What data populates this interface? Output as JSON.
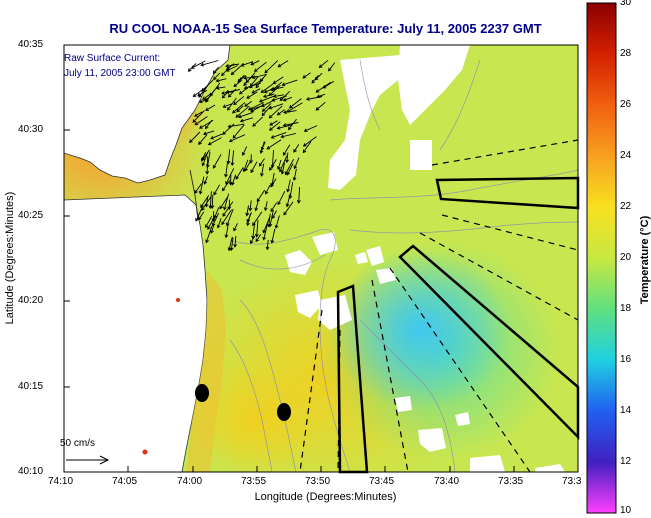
{
  "title": "RU COOL  NOAA-15  Sea Surface Temperature:  July 11, 2005 2237 GMT",
  "map": {
    "xlabel": "Longitude (Degrees:Minutes)",
    "ylabel": "Latitude (Degrees:Minutes)",
    "x_ticks": [
      "74:10",
      "74:05",
      "74:00",
      "73:55",
      "73:50",
      "73:45",
      "73:40",
      "73:35",
      "73:3"
    ],
    "y_ticks": [
      "40:35",
      "40:30",
      "40:25",
      "40:20",
      "40:15",
      "40:10"
    ],
    "annotation_line1": "Raw Surface Current:",
    "annotation_line2": "July 11, 2005 23:00 GMT",
    "scale_label": "50 cm/s"
  },
  "colorbar": {
    "label": "Temperature (°C)",
    "ticks": [
      "30",
      "28",
      "26",
      "24",
      "22",
      "20",
      "18",
      "16",
      "14",
      "12",
      "10"
    ],
    "min": 10,
    "max": 30
  },
  "colors": {
    "title": "#00008b",
    "land": "#ffffff",
    "water_mid": "#c8e650",
    "vector": "#000000"
  }
}
